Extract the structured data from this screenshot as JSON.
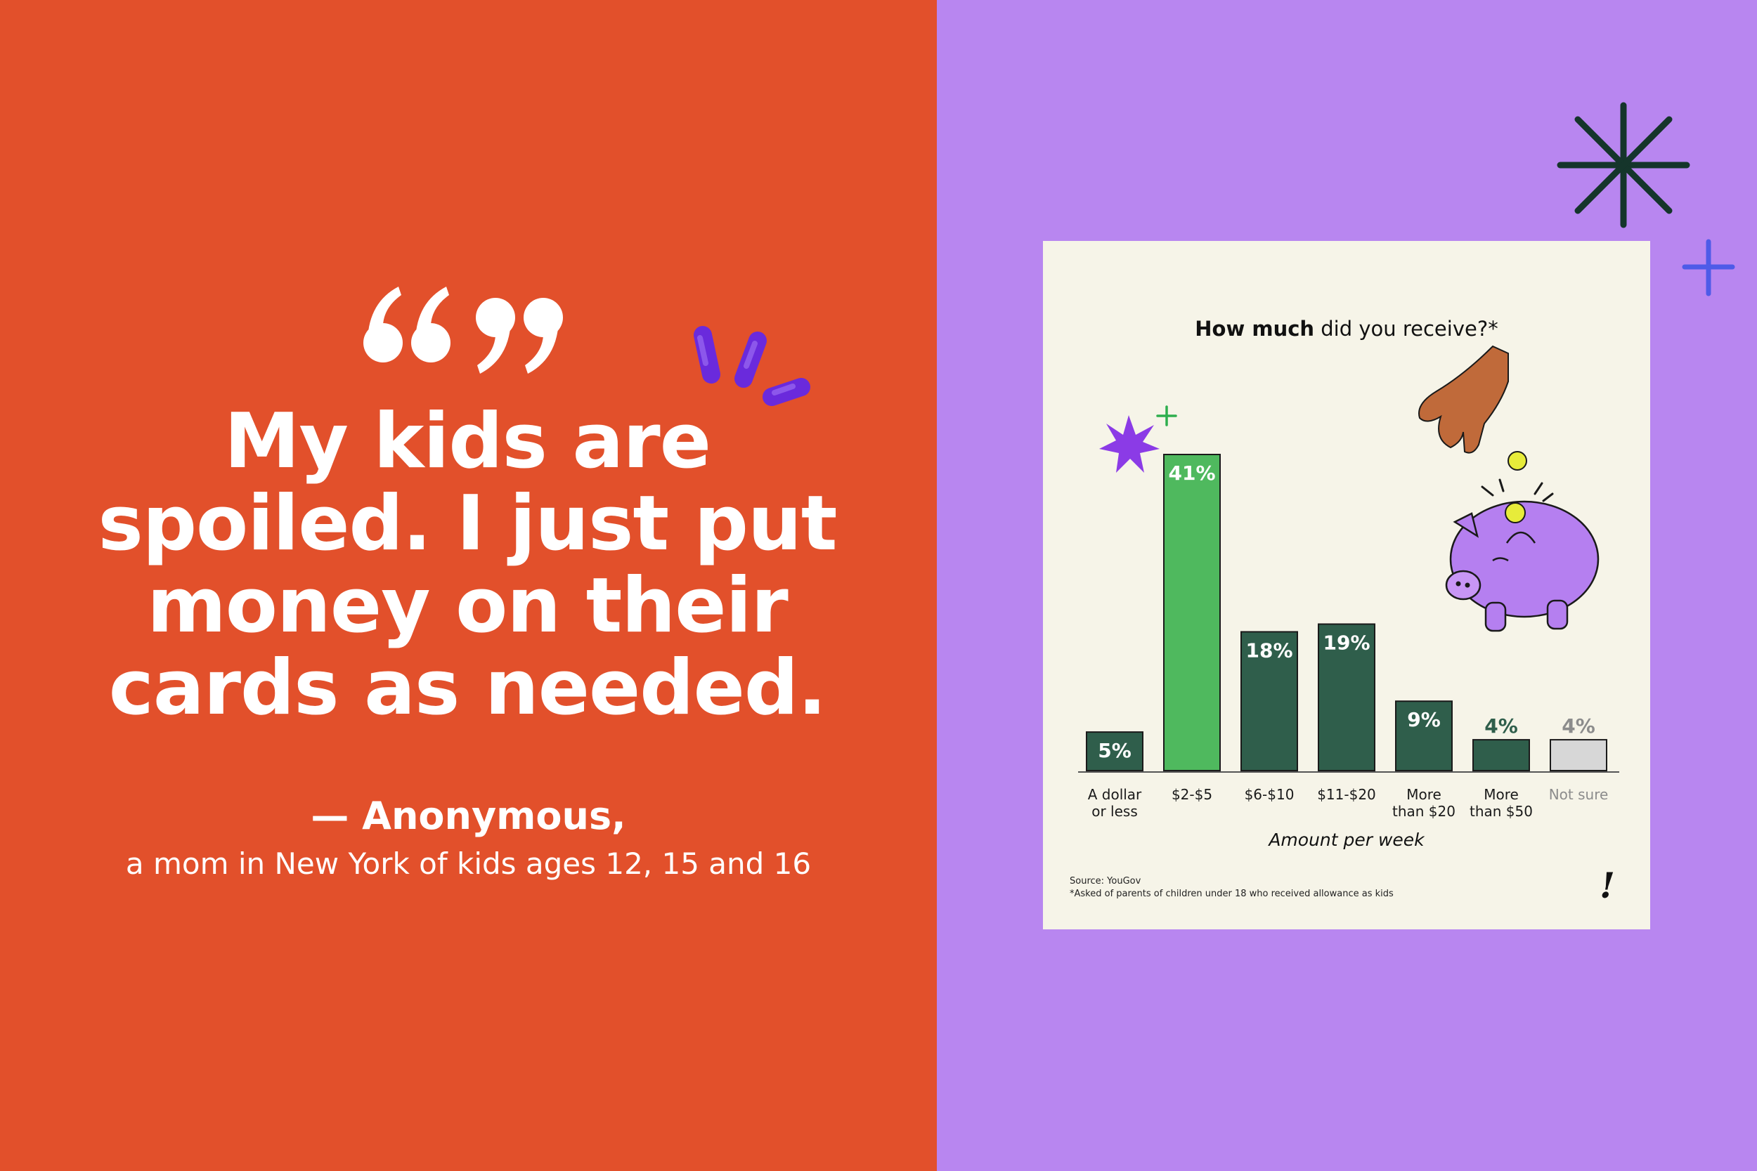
{
  "quote": {
    "text": "My kids are spoiled. I just put money on their cards as needed.",
    "attribution_name": "— Anonymous,",
    "attribution_desc": "a mom in New York of kids ages 12, 15 and 16"
  },
  "colors": {
    "left_bg": "#E2502B",
    "right_bg": "#B886F0",
    "card_bg": "#F6F4E8",
    "bar_dark": "#2F5E4B",
    "bar_highlight": "#4FB95E",
    "bar_unsure": "#D7D7D7"
  },
  "chart_data": {
    "type": "bar",
    "title_bold": "How much",
    "title_rest": " did you receive?*",
    "categories": [
      "A dollar\nor less",
      "$2-$5",
      "$6-$10",
      "$11-$20",
      "More\nthan $20",
      "More\nthan $50",
      "Not sure"
    ],
    "values": [
      5,
      41,
      18,
      19,
      9,
      4,
      4
    ],
    "value_labels": [
      "5%",
      "41%",
      "18%",
      "19%",
      "9%",
      "4%",
      "4%"
    ],
    "xlabel": "Amount per week",
    "ylabel": "",
    "ylim": [
      0,
      41
    ],
    "grid": false,
    "legend": "none",
    "source": "Source: YouGov",
    "footnote": "*Asked of parents of children under 18 who received allowance as kids"
  }
}
